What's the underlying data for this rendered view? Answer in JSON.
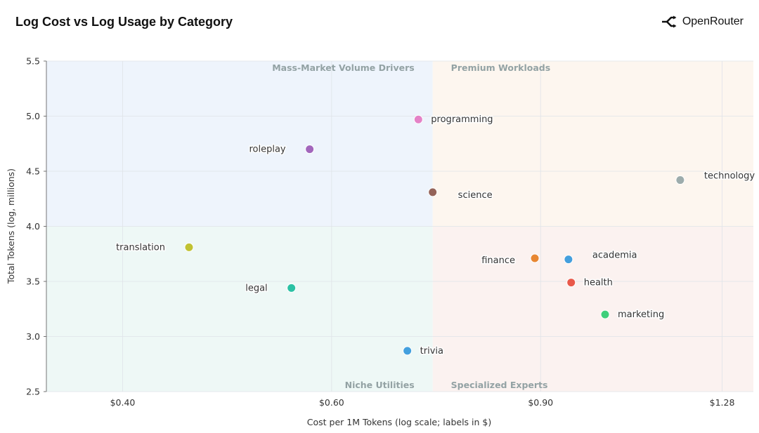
{
  "header": {
    "title": "Log Cost vs Log Usage by Category",
    "brand_name": "OpenRouter",
    "brand_icon": "openrouter-logo-icon"
  },
  "chart_data": {
    "type": "scatter",
    "title": "Log Cost vs Log Usage by Category",
    "xlabel": "Cost per 1M Tokens (log scale; labels in $)",
    "ylabel": "Total Tokens (log, millions)",
    "x_scale": "log",
    "xlim": [
      0.345,
      1.36
    ],
    "ylim": [
      2.5,
      5.5
    ],
    "x_ticks": [
      0.4,
      0.6,
      0.9,
      1.28
    ],
    "x_tick_labels": [
      "$0.40",
      "$0.60",
      "$0.90",
      "$1.28"
    ],
    "y_ticks": [
      2.5,
      3.0,
      3.5,
      4.0,
      4.5,
      5.0,
      5.5
    ],
    "y_tick_labels": [
      "2.5",
      "3.0",
      "3.5",
      "4.0",
      "4.5",
      "5.0",
      "5.5"
    ],
    "grid": true,
    "quadrant_split": {
      "x": 0.73,
      "y": 4.0
    },
    "quadrants": [
      {
        "label": "Mass-Market Volume Drivers",
        "position": "top-left",
        "color": "#eef4fc"
      },
      {
        "label": "Premium Workloads",
        "position": "top-right",
        "color": "#fdf6ef"
      },
      {
        "label": "Niche Utilities",
        "position": "bottom-left",
        "color": "#eef8f6"
      },
      {
        "label": "Specialized Experts",
        "position": "bottom-right",
        "color": "#fbf2f0"
      }
    ],
    "points": [
      {
        "label": "programming",
        "x": 0.71,
        "y": 4.97,
        "color": "#e377c2",
        "label_side": "right"
      },
      {
        "label": "roleplay",
        "x": 0.575,
        "y": 4.7,
        "color": "#9b59b6",
        "label_side": "left"
      },
      {
        "label": "science",
        "x": 0.73,
        "y": 4.31,
        "color": "#8c564b",
        "label_side": "right-low"
      },
      {
        "label": "technology",
        "x": 1.18,
        "y": 4.42,
        "color": "#95a5a6",
        "label_side": "right-high"
      },
      {
        "label": "translation",
        "x": 0.455,
        "y": 3.81,
        "color": "#bcbd22",
        "label_side": "left"
      },
      {
        "label": "finance",
        "x": 0.89,
        "y": 3.71,
        "color": "#e67e22",
        "label_side": "left-low"
      },
      {
        "label": "academia",
        "x": 0.95,
        "y": 3.7,
        "color": "#3498db",
        "label_side": "right-high"
      },
      {
        "label": "legal",
        "x": 0.555,
        "y": 3.44,
        "color": "#1abc9c",
        "label_side": "left"
      },
      {
        "label": "health",
        "x": 0.955,
        "y": 3.49,
        "color": "#e74c3c",
        "label_side": "right"
      },
      {
        "label": "marketing",
        "x": 1.02,
        "y": 3.2,
        "color": "#2ecc71",
        "label_side": "right"
      },
      {
        "label": "trivia",
        "x": 0.695,
        "y": 2.87,
        "color": "#3498db",
        "label_side": "right"
      }
    ]
  }
}
